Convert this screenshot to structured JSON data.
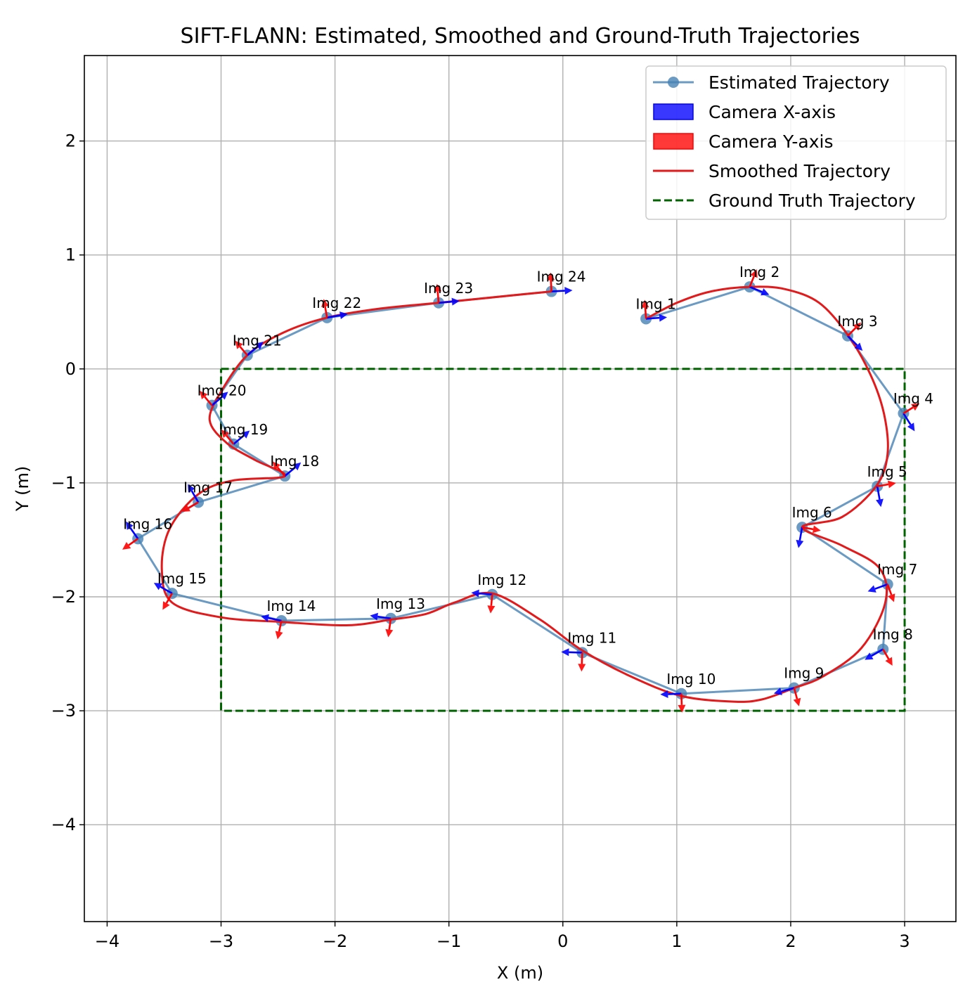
{
  "chart_data": {
    "type": "line",
    "title": "SIFT-FLANN: Estimated, Smoothed and Ground-Truth Trajectories",
    "xlabel": "X (m)",
    "ylabel": "Y (m)",
    "xlim": [
      -4.2,
      3.45
    ],
    "ylim": [
      -4.85,
      2.75
    ],
    "xticks": [
      -4,
      -3,
      -2,
      -1,
      0,
      1,
      2,
      3
    ],
    "xtick_labels": [
      "−4",
      "−3",
      "−2",
      "−1",
      "0",
      "1",
      "2",
      "3"
    ],
    "yticks": [
      -4,
      -3,
      -2,
      -1,
      0,
      1,
      2
    ],
    "ytick_labels": [
      "−4",
      "−3",
      "−2",
      "−1",
      "0",
      "1",
      "2"
    ],
    "grid": true,
    "legend_position": "top-right",
    "legend": [
      {
        "label": "Estimated Trajectory",
        "kind": "line-marker",
        "color": "#4682b4"
      },
      {
        "label": "Camera X-axis",
        "kind": "patch",
        "color": "#0000ff"
      },
      {
        "label": "Camera Y-axis",
        "kind": "patch",
        "color": "#ff0000"
      },
      {
        "label": "Smoothed Trajectory",
        "kind": "line",
        "color": "#e31a1c"
      },
      {
        "label": "Ground Truth Trajectory",
        "kind": "dashed",
        "color": "#006400"
      }
    ],
    "colors": {
      "estimated": "#4682b4",
      "smoothed": "#e31a1c",
      "ground_truth": "#006400",
      "camera_x": "#0000ff",
      "camera_y": "#ff0000"
    },
    "estimated": [
      {
        "label": "Img 1",
        "x": 0.73,
        "y": 0.44,
        "heading": 4
      },
      {
        "label": "Img 2",
        "x": 1.64,
        "y": 0.72,
        "heading": -22
      },
      {
        "label": "Img 3",
        "x": 2.5,
        "y": 0.29,
        "heading": -45
      },
      {
        "label": "Img 4",
        "x": 2.99,
        "y": -0.39,
        "heading": -58
      },
      {
        "label": "Img 5",
        "x": 2.76,
        "y": -1.03,
        "heading": -80
      },
      {
        "label": "Img 6",
        "x": 2.1,
        "y": -1.39,
        "heading": -100
      },
      {
        "label": "Img 7",
        "x": 2.85,
        "y": -1.89,
        "heading": -160
      },
      {
        "label": "Img 8",
        "x": 2.81,
        "y": -2.46,
        "heading": -150
      },
      {
        "label": "Img 9",
        "x": 2.03,
        "y": -2.8,
        "heading": -165
      },
      {
        "label": "Img 10",
        "x": 1.04,
        "y": -2.85,
        "heading": -178
      },
      {
        "label": "Img 11",
        "x": 0.17,
        "y": -2.49,
        "heading": 178
      },
      {
        "label": "Img 12",
        "x": -0.62,
        "y": -1.98,
        "heading": 175
      },
      {
        "label": "Img 13",
        "x": -1.51,
        "y": -2.19,
        "heading": 172
      },
      {
        "label": "Img 14",
        "x": -2.47,
        "y": -2.21,
        "heading": 168
      },
      {
        "label": "Img 15",
        "x": -3.43,
        "y": -1.97,
        "heading": 150
      },
      {
        "label": "Img 16",
        "x": -3.73,
        "y": -1.49,
        "heading": 125
      },
      {
        "label": "Img 17",
        "x": -3.2,
        "y": -1.17,
        "heading": 120
      },
      {
        "label": "Img 18",
        "x": -2.44,
        "y": -0.94,
        "heading": 40
      },
      {
        "label": "Img 19",
        "x": -2.89,
        "y": -0.66,
        "heading": 40
      },
      {
        "label": "Img 20",
        "x": -3.08,
        "y": -0.32,
        "heading": 40
      },
      {
        "label": "Img 21",
        "x": -2.77,
        "y": 0.12,
        "heading": 40
      },
      {
        "label": "Img 22",
        "x": -2.07,
        "y": 0.45,
        "heading": 10
      },
      {
        "label": "Img 23",
        "x": -1.09,
        "y": 0.58,
        "heading": 5
      },
      {
        "label": "Img 24",
        "x": -0.1,
        "y": 0.68,
        "heading": 3
      }
    ],
    "smoothed": [
      [
        0.73,
        0.44
      ],
      [
        1.0,
        0.58
      ],
      [
        1.3,
        0.68
      ],
      [
        1.64,
        0.72
      ],
      [
        1.95,
        0.7
      ],
      [
        2.25,
        0.58
      ],
      [
        2.5,
        0.3
      ],
      [
        2.7,
        -0.05
      ],
      [
        2.82,
        -0.4
      ],
      [
        2.85,
        -0.75
      ],
      [
        2.75,
        -1.03
      ],
      [
        2.45,
        -1.3
      ],
      [
        2.1,
        -1.39
      ],
      [
        2.45,
        -1.55
      ],
      [
        2.78,
        -1.75
      ],
      [
        2.83,
        -2.05
      ],
      [
        2.62,
        -2.45
      ],
      [
        2.28,
        -2.7
      ],
      [
        2.03,
        -2.8
      ],
      [
        1.75,
        -2.9
      ],
      [
        1.5,
        -2.92
      ],
      [
        1.04,
        -2.87
      ],
      [
        0.6,
        -2.7
      ],
      [
        0.17,
        -2.47
      ],
      [
        -0.2,
        -2.2
      ],
      [
        -0.62,
        -1.97
      ],
      [
        -0.95,
        -2.05
      ],
      [
        -1.2,
        -2.15
      ],
      [
        -1.51,
        -2.2
      ],
      [
        -1.9,
        -2.25
      ],
      [
        -2.47,
        -2.22
      ],
      [
        -3.0,
        -2.18
      ],
      [
        -3.43,
        -2.05
      ],
      [
        -3.52,
        -1.75
      ],
      [
        -3.45,
        -1.4
      ],
      [
        -3.2,
        -1.1
      ],
      [
        -2.9,
        -0.98
      ],
      [
        -2.44,
        -0.94
      ],
      [
        -2.7,
        -0.8
      ],
      [
        -2.95,
        -0.65
      ],
      [
        -3.1,
        -0.45
      ],
      [
        -3.0,
        -0.2
      ],
      [
        -2.77,
        0.12
      ],
      [
        -2.45,
        0.32
      ],
      [
        -2.07,
        0.45
      ],
      [
        -1.6,
        0.53
      ],
      [
        -1.09,
        0.58
      ],
      [
        -0.6,
        0.63
      ],
      [
        -0.1,
        0.68
      ]
    ],
    "ground_truth": [
      [
        -3,
        0
      ],
      [
        3,
        0
      ],
      [
        3,
        -3
      ],
      [
        -3,
        -3
      ],
      [
        -3,
        0
      ]
    ]
  }
}
